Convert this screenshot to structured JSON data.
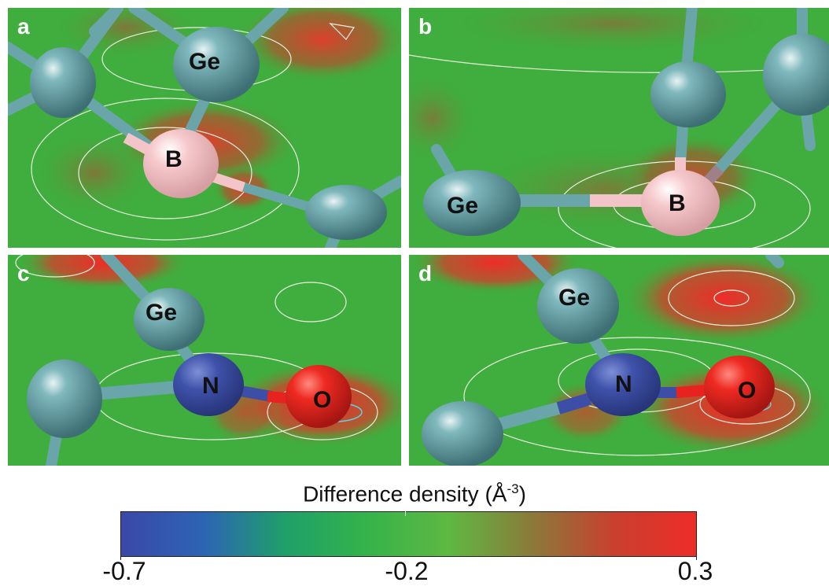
{
  "panels": [
    {
      "letter": "a",
      "atoms": [
        "Ge",
        "B"
      ]
    },
    {
      "letter": "b",
      "atoms": [
        "Ge",
        "B"
      ]
    },
    {
      "letter": "c",
      "atoms": [
        "Ge",
        "N",
        "O"
      ]
    },
    {
      "letter": "d",
      "atoms": [
        "Ge",
        "N",
        "O"
      ]
    }
  ],
  "colorbar": {
    "title_main": "Difference density (Å",
    "title_sup": "-3",
    "title_end": ")",
    "min_label": "-0.7",
    "mid_label": "-0.2",
    "max_label": "0.3",
    "colors": [
      "#3b48a8",
      "#2c64b4",
      "#1fa06a",
      "#35b34a",
      "#5fb842",
      "#8a7a3a",
      "#c8402e",
      "#ee2c28"
    ]
  },
  "colors": {
    "background_green": "#3fae3e",
    "ge_atom": "#5f9ea4",
    "b_atom": "#f3c4c8",
    "n_atom": "#3c4ea6",
    "o_atom": "#e8231f",
    "positive_density": "#e53a2b"
  }
}
